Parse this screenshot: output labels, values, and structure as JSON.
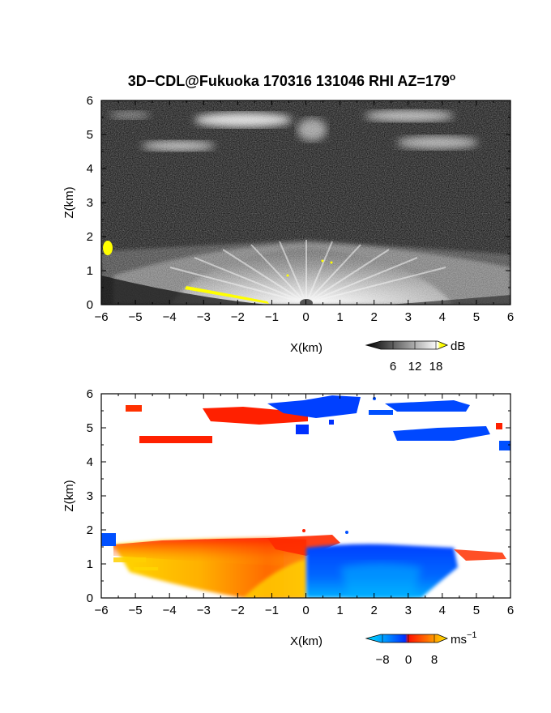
{
  "title": {
    "text": "3D−CDL@Fukuoka 170316 131046 RHI AZ=179",
    "degree": "o"
  },
  "chart_data": [
    {
      "type": "heatmap",
      "panel": "reflectivity",
      "xlabel": "X(km)",
      "ylabel": "Z(km)",
      "xlim": [
        -6,
        6
      ],
      "ylim": [
        0,
        6
      ],
      "xticks": [
        "−6",
        "−5",
        "−4",
        "−3",
        "−2",
        "−1",
        "0",
        "1",
        "2",
        "3",
        "4",
        "5",
        "6"
      ],
      "yticks": [
        "0",
        "1",
        "2",
        "3",
        "4",
        "5",
        "6"
      ],
      "colorbar": {
        "ticks": [
          "6",
          "12",
          "18"
        ],
        "unit": "dB",
        "colors": [
          "#000000",
          "#ffffff",
          "#ffff00"
        ]
      },
      "features": [
        {
          "name": "boundary layer echo",
          "x": [
            -6,
            6
          ],
          "z": [
            0,
            1.6
          ]
        },
        {
          "name": "cloud layer",
          "x": [
            -6,
            6
          ],
          "z": [
            4.5,
            5.9
          ]
        },
        {
          "name": "saturated ground echo",
          "x": [
            -3.5,
            -1
          ],
          "z": [
            0,
            0.5
          ],
          "color": "#ffff00"
        }
      ]
    },
    {
      "type": "heatmap",
      "panel": "doppler velocity",
      "xlabel": "X(km)",
      "ylabel": "Z(km)",
      "xlim": [
        -6,
        6
      ],
      "ylim": [
        0,
        6
      ],
      "xticks": [
        "−6",
        "−5",
        "−4",
        "−3",
        "−2",
        "−1",
        "0",
        "1",
        "2",
        "3",
        "4",
        "5",
        "6"
      ],
      "yticks": [
        "0",
        "1",
        "2",
        "3",
        "4",
        "5",
        "6"
      ],
      "colorbar": {
        "ticks": [
          "−8",
          "0",
          "8"
        ],
        "unit": "ms",
        "unit_exp": "−1",
        "colors": [
          "#00c8ff",
          "#0050ff",
          "#ff2000",
          "#ffe000"
        ]
      },
      "features": [
        {
          "name": "receding flow (positive)",
          "x": [
            -6,
            0
          ],
          "z": [
            0,
            1.6
          ],
          "color": "#ff8000"
        },
        {
          "name": "approaching flow (negative)",
          "x": [
            0,
            4.5
          ],
          "z": [
            0,
            1.5
          ],
          "color": "#0050ff"
        },
        {
          "name": "upper cloud echoes",
          "x": [
            -5.5,
            6
          ],
          "z": [
            4.5,
            5.9
          ]
        }
      ]
    }
  ]
}
